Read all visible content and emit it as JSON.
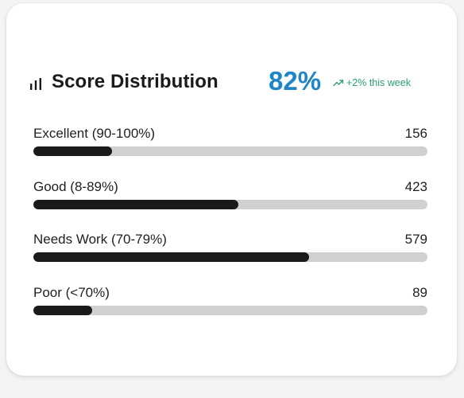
{
  "card": {
    "title": "Score Distribution",
    "title_icon": "bar-chart-icon",
    "score": "82%",
    "trend": {
      "icon": "trending-up-icon",
      "text": "+2% this week",
      "color": "#2aa26a"
    },
    "accent_color": "#1e86c8"
  },
  "rows": [
    {
      "label": "Excellent (90-100%)",
      "count": "156",
      "fill_fraction": 0.2
    },
    {
      "label": "Good (8-89%)",
      "count": "423",
      "fill_fraction": 0.52
    },
    {
      "label": "Needs Work (70-79%)",
      "count": "579",
      "fill_fraction": 0.7
    },
    {
      "label": "Poor (<70%)",
      "count": "89",
      "fill_fraction": 0.15
    }
  ]
}
